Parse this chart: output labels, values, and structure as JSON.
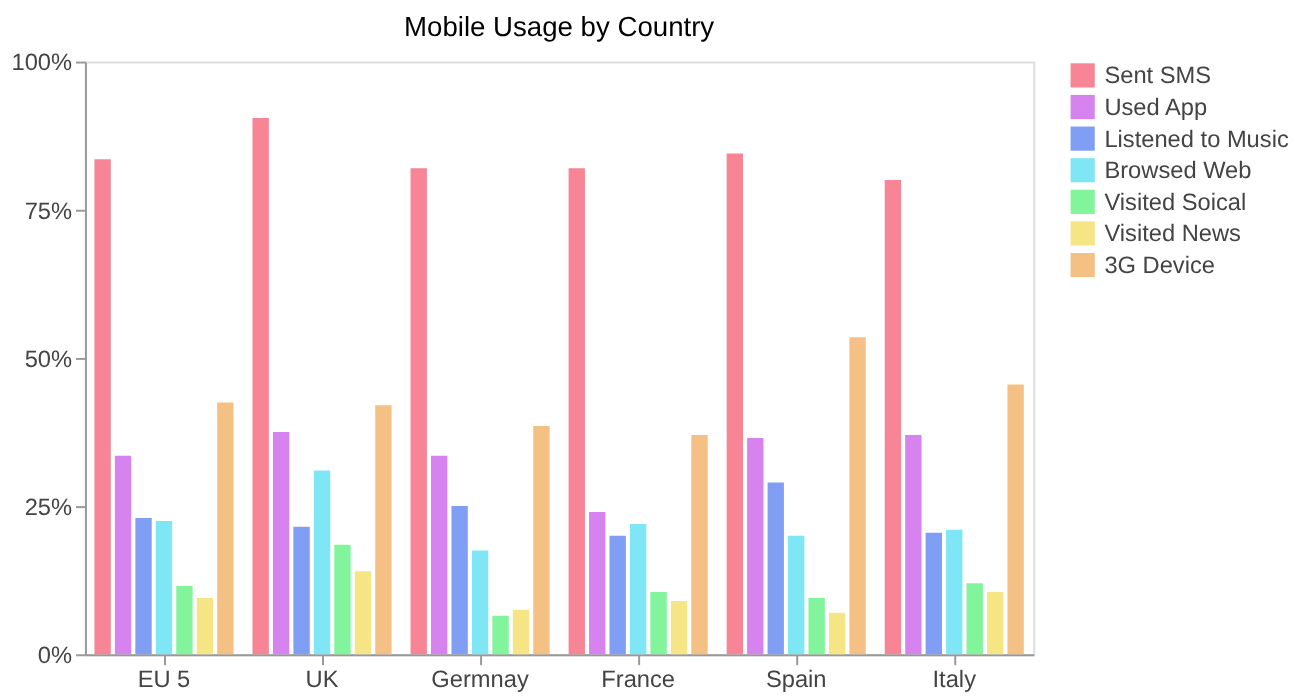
{
  "chart_data": {
    "type": "bar",
    "title": "Mobile Usage by Country",
    "categories": [
      "EU 5",
      "UK",
      "Germnay",
      "France",
      "Spain",
      "Italy"
    ],
    "series": [
      {
        "name": "Sent SMS",
        "color": "#f78595",
        "values": [
          83.5,
          90.5,
          82,
          82,
          84.5,
          80
        ]
      },
      {
        "name": "Used App",
        "color": "#d683f0",
        "values": [
          33.5,
          37.5,
          33.5,
          24,
          36.5,
          37
        ]
      },
      {
        "name": "Listened to Music",
        "color": "#819ef5",
        "values": [
          23,
          21.5,
          25,
          20,
          29,
          20.5
        ]
      },
      {
        "name": "Browsed Web",
        "color": "#7fe6f5",
        "values": [
          22.5,
          31,
          17.5,
          22,
          20,
          21
        ]
      },
      {
        "name": "Visited Soical",
        "color": "#82f59c",
        "values": [
          11.5,
          18.5,
          6.5,
          10.5,
          9.5,
          12
        ]
      },
      {
        "name": "Visited News",
        "color": "#f5e585",
        "values": [
          9.5,
          14,
          7.5,
          9,
          7,
          10.5
        ]
      },
      {
        "name": "3G Device",
        "color": "#f5c083",
        "values": [
          42.5,
          42,
          38.5,
          37,
          53.5,
          45.5
        ]
      }
    ],
    "ylim": [
      0,
      100
    ],
    "yticks": [
      {
        "value": 0,
        "label": "0%"
      },
      {
        "value": 25,
        "label": "25%"
      },
      {
        "value": 50,
        "label": "50%"
      },
      {
        "value": 75,
        "label": "75%"
      },
      {
        "value": 100,
        "label": "100%"
      }
    ],
    "grid": false,
    "legend": "right"
  }
}
